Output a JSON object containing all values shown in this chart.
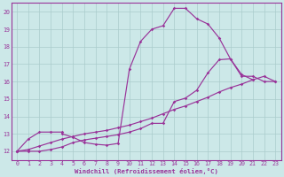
{
  "xlabel": "Windchill (Refroidissement éolien,°C)",
  "bg_color": "#cce8e8",
  "line_color": "#993399",
  "grid_color": "#aacccc",
  "axis_color": "#993399",
  "text_color": "#993399",
  "xlim": [
    -0.5,
    23.5
  ],
  "ylim": [
    11.5,
    20.5
  ],
  "yticks": [
    12,
    13,
    14,
    15,
    16,
    17,
    18,
    19,
    20
  ],
  "xticks": [
    0,
    1,
    2,
    3,
    4,
    5,
    6,
    7,
    8,
    9,
    10,
    11,
    12,
    13,
    14,
    15,
    16,
    17,
    18,
    19,
    20,
    21,
    22,
    23
  ],
  "line1_x": [
    0,
    1,
    2,
    3,
    4,
    4,
    5,
    6,
    7,
    8,
    9,
    10,
    11,
    12,
    13,
    14,
    15,
    16,
    17,
    18,
    19,
    20,
    21
  ],
  "line1_y": [
    12.0,
    12.7,
    13.1,
    13.1,
    13.1,
    13.0,
    12.8,
    12.5,
    12.4,
    12.35,
    12.45,
    16.7,
    18.3,
    19.0,
    19.2,
    20.2,
    20.2,
    19.6,
    19.3,
    18.5,
    17.3,
    16.4,
    16.1
  ],
  "line2_x": [
    0,
    1,
    2,
    3,
    4,
    5,
    6,
    7,
    8,
    9,
    10,
    11,
    12,
    13,
    14,
    15,
    16,
    17,
    18,
    19,
    20,
    21,
    22,
    23
  ],
  "line2_y": [
    12.0,
    12.1,
    12.3,
    12.5,
    12.7,
    12.85,
    13.0,
    13.1,
    13.2,
    13.35,
    13.5,
    13.7,
    13.9,
    14.15,
    14.4,
    14.6,
    14.85,
    15.1,
    15.4,
    15.65,
    15.85,
    16.1,
    16.3,
    16.0
  ],
  "line3_x": [
    0,
    1,
    2,
    3,
    4,
    5,
    6,
    7,
    8,
    9,
    10,
    11,
    12,
    13,
    14,
    15,
    16,
    17,
    18,
    19,
    20,
    21,
    22,
    23
  ],
  "line3_y": [
    12.0,
    12.0,
    12.0,
    12.1,
    12.25,
    12.5,
    12.65,
    12.75,
    12.85,
    12.95,
    13.1,
    13.3,
    13.6,
    13.6,
    14.85,
    15.05,
    15.5,
    16.5,
    17.25,
    17.3,
    16.3,
    16.3,
    16.0,
    16.0
  ]
}
